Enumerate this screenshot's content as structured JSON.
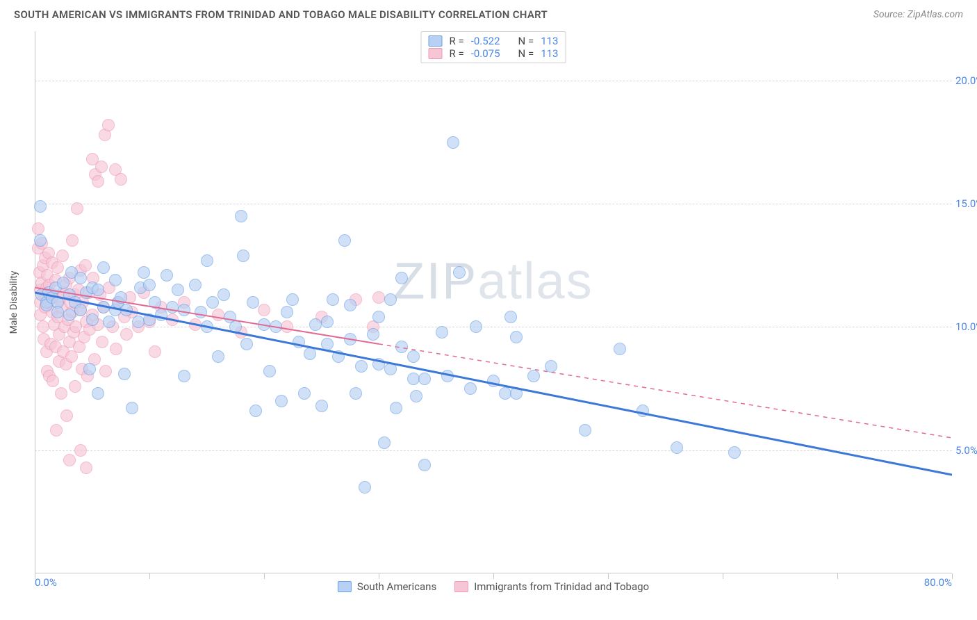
{
  "title": "SOUTH AMERICAN VS IMMIGRANTS FROM TRINIDAD AND TOBAGO MALE DISABILITY CORRELATION CHART",
  "source": "Source: ZipAtlas.com",
  "watermark_a": "ZIP",
  "watermark_b": "atlas",
  "chart": {
    "type": "scatter",
    "y_axis_title": "Male Disability",
    "xlim": [
      0,
      80
    ],
    "ylim": [
      0,
      22
    ],
    "y_ticks": [
      5,
      10,
      15,
      20
    ],
    "y_tick_labels": [
      "5.0%",
      "10.0%",
      "15.0%",
      "20.0%"
    ],
    "x_ticks": [
      0,
      10,
      20,
      30,
      40,
      50,
      60,
      70,
      80
    ],
    "x_tick_labels": {
      "0": "0.0%",
      "80": "80.0%"
    },
    "grid_color": "#d8d8d8",
    "axis_color": "#c8c8c8",
    "background_color": "#ffffff",
    "tick_label_color": "#4a86e8",
    "series": [
      {
        "name": "South Americans",
        "fill_color": "#b7d1f4",
        "stroke_color": "#6aa0e8",
        "marker_opacity": 0.65,
        "marker_radius": 9,
        "regression": {
          "x1": 0,
          "y1": 11.4,
          "x2": 80,
          "y2": 4.0,
          "solid_until_x": 80,
          "color": "#3b78d8",
          "width": 3
        },
        "R": "-0.522",
        "N": "113",
        "points": [
          [
            0.5,
            14.9
          ],
          [
            0.5,
            13.5
          ],
          [
            0.6,
            11.3
          ],
          [
            1,
            11.0
          ],
          [
            1,
            10.9
          ],
          [
            1.2,
            11.4
          ],
          [
            1.5,
            11.2
          ],
          [
            1.8,
            11.6
          ],
          [
            2,
            11.0
          ],
          [
            2,
            10.6
          ],
          [
            2.5,
            11.8
          ],
          [
            3,
            11.3
          ],
          [
            3,
            10.5
          ],
          [
            3.2,
            12.2
          ],
          [
            3.5,
            11.0
          ],
          [
            4,
            10.7
          ],
          [
            4,
            12.0
          ],
          [
            4.5,
            11.4
          ],
          [
            4.8,
            8.3
          ],
          [
            5,
            11.6
          ],
          [
            5,
            10.3
          ],
          [
            5.5,
            7.3
          ],
          [
            5.5,
            11.5
          ],
          [
            6,
            10.8
          ],
          [
            6,
            12.4
          ],
          [
            6.5,
            10.2
          ],
          [
            7,
            10.7
          ],
          [
            7,
            11.9
          ],
          [
            7.3,
            11.0
          ],
          [
            7.5,
            11.2
          ],
          [
            7.8,
            8.1
          ],
          [
            8,
            10.7
          ],
          [
            8.5,
            6.7
          ],
          [
            9,
            10.2
          ],
          [
            9.2,
            11.6
          ],
          [
            9.5,
            12.2
          ],
          [
            10,
            11.7
          ],
          [
            10,
            10.3
          ],
          [
            10.5,
            11.0
          ],
          [
            11,
            10.5
          ],
          [
            11.5,
            12.1
          ],
          [
            12,
            10.8
          ],
          [
            12.5,
            11.5
          ],
          [
            13,
            8.0
          ],
          [
            13,
            10.7
          ],
          [
            14,
            11.7
          ],
          [
            14.5,
            10.6
          ],
          [
            15,
            12.7
          ],
          [
            15,
            10.0
          ],
          [
            15.5,
            11.0
          ],
          [
            16,
            8.8
          ],
          [
            16.5,
            11.3
          ],
          [
            17,
            10.4
          ],
          [
            17.5,
            10.0
          ],
          [
            18,
            14.5
          ],
          [
            18.2,
            12.9
          ],
          [
            18.5,
            9.3
          ],
          [
            19,
            11.0
          ],
          [
            19.3,
            6.6
          ],
          [
            20,
            10.1
          ],
          [
            20.5,
            8.2
          ],
          [
            21,
            10.0
          ],
          [
            21.5,
            7.0
          ],
          [
            22,
            10.6
          ],
          [
            22.5,
            11.1
          ],
          [
            23,
            9.4
          ],
          [
            23.5,
            7.3
          ],
          [
            24,
            8.9
          ],
          [
            24.5,
            10.1
          ],
          [
            25,
            6.8
          ],
          [
            25.5,
            9.3
          ],
          [
            25.5,
            10.2
          ],
          [
            26,
            11.1
          ],
          [
            26.5,
            8.8
          ],
          [
            27,
            13.5
          ],
          [
            27.5,
            9.5
          ],
          [
            27.5,
            10.9
          ],
          [
            28,
            7.3
          ],
          [
            28.5,
            8.4
          ],
          [
            28.8,
            3.5
          ],
          [
            29.5,
            9.7
          ],
          [
            30,
            8.5
          ],
          [
            30,
            10.4
          ],
          [
            30.5,
            5.3
          ],
          [
            31,
            11.1
          ],
          [
            31,
            8.3
          ],
          [
            31.5,
            6.7
          ],
          [
            32,
            9.2
          ],
          [
            32,
            12.0
          ],
          [
            33,
            7.9
          ],
          [
            33,
            8.8
          ],
          [
            33.3,
            7.2
          ],
          [
            34,
            7.9
          ],
          [
            34,
            4.4
          ],
          [
            35.5,
            9.8
          ],
          [
            36,
            8.0
          ],
          [
            36.5,
            17.5
          ],
          [
            37,
            12.2
          ],
          [
            38,
            7.5
          ],
          [
            38.5,
            10.0
          ],
          [
            40,
            7.8
          ],
          [
            41,
            7.3
          ],
          [
            41.5,
            10.4
          ],
          [
            42,
            7.3
          ],
          [
            42,
            9.6
          ],
          [
            43.5,
            8.0
          ],
          [
            45,
            8.4
          ],
          [
            48,
            5.8
          ],
          [
            51,
            9.1
          ],
          [
            53,
            6.6
          ],
          [
            56,
            5.1
          ],
          [
            61,
            4.9
          ]
        ]
      },
      {
        "name": "Immigrants from Trinidad and Tobago",
        "fill_color": "#f6c5d6",
        "stroke_color": "#ed9ab5",
        "marker_opacity": 0.65,
        "marker_radius": 9,
        "regression": {
          "x1": 0,
          "y1": 11.6,
          "x2": 80,
          "y2": 5.5,
          "solid_until_x": 30,
          "color": "#e06a94",
          "width": 2
        },
        "R": "-0.075",
        "N": "113",
        "points": [
          [
            0.3,
            14.0
          ],
          [
            0.3,
            13.2
          ],
          [
            0.4,
            12.2
          ],
          [
            0.5,
            11.5
          ],
          [
            0.5,
            11.0
          ],
          [
            0.5,
            10.5
          ],
          [
            0.6,
            13.4
          ],
          [
            0.6,
            11.8
          ],
          [
            0.7,
            10.0
          ],
          [
            0.7,
            12.5
          ],
          [
            0.8,
            9.5
          ],
          [
            0.8,
            11.3
          ],
          [
            0.9,
            12.8
          ],
          [
            0.9,
            10.8
          ],
          [
            1.0,
            11.6
          ],
          [
            1.0,
            9.0
          ],
          [
            1.1,
            12.1
          ],
          [
            1.1,
            8.2
          ],
          [
            1.2,
            11.0
          ],
          [
            1.2,
            13.0
          ],
          [
            1.3,
            8.0
          ],
          [
            1.3,
            11.7
          ],
          [
            1.4,
            9.3
          ],
          [
            1.5,
            10.6
          ],
          [
            1.5,
            12.6
          ],
          [
            1.6,
            11.3
          ],
          [
            1.6,
            7.8
          ],
          [
            1.7,
            10.1
          ],
          [
            1.8,
            9.2
          ],
          [
            1.8,
            11.9
          ],
          [
            1.9,
            5.8
          ],
          [
            2.0,
            10.4
          ],
          [
            2.0,
            12.4
          ],
          [
            2.1,
            9.7
          ],
          [
            2.1,
            8.6
          ],
          [
            2.2,
            11.1
          ],
          [
            2.3,
            7.3
          ],
          [
            2.3,
            10.8
          ],
          [
            2.4,
            12.9
          ],
          [
            2.5,
            9.0
          ],
          [
            2.5,
            11.4
          ],
          [
            2.6,
            10.0
          ],
          [
            2.7,
            8.5
          ],
          [
            2.7,
            11.7
          ],
          [
            2.8,
            6.4
          ],
          [
            2.9,
            10.3
          ],
          [
            3.0,
            12.0
          ],
          [
            3.0,
            9.4
          ],
          [
            3.0,
            4.6
          ],
          [
            3.1,
            11.0
          ],
          [
            3.2,
            8.8
          ],
          [
            3.3,
            10.6
          ],
          [
            3.3,
            13.5
          ],
          [
            3.4,
            9.8
          ],
          [
            3.5,
            11.3
          ],
          [
            3.5,
            7.6
          ],
          [
            3.6,
            10.0
          ],
          [
            3.7,
            14.8
          ],
          [
            3.8,
            11.5
          ],
          [
            3.9,
            9.2
          ],
          [
            4.0,
            10.7
          ],
          [
            4.0,
            12.3
          ],
          [
            4.0,
            5.0
          ],
          [
            4.1,
            8.3
          ],
          [
            4.2,
            11.0
          ],
          [
            4.3,
            9.6
          ],
          [
            4.4,
            12.5
          ],
          [
            4.5,
            10.2
          ],
          [
            4.5,
            4.3
          ],
          [
            4.6,
            8.0
          ],
          [
            4.7,
            11.4
          ],
          [
            4.8,
            9.9
          ],
          [
            5.0,
            10.5
          ],
          [
            5.0,
            16.8
          ],
          [
            5.1,
            12.0
          ],
          [
            5.2,
            8.7
          ],
          [
            5.3,
            16.2
          ],
          [
            5.5,
            10.1
          ],
          [
            5.5,
            15.9
          ],
          [
            5.7,
            11.3
          ],
          [
            5.8,
            16.5
          ],
          [
            5.9,
            9.4
          ],
          [
            6.0,
            10.8
          ],
          [
            6.1,
            17.8
          ],
          [
            6.2,
            8.2
          ],
          [
            6.4,
            18.2
          ],
          [
            6.5,
            11.6
          ],
          [
            6.8,
            10.0
          ],
          [
            7.0,
            16.4
          ],
          [
            7.1,
            9.1
          ],
          [
            7.3,
            11.0
          ],
          [
            7.5,
            16.0
          ],
          [
            7.8,
            10.4
          ],
          [
            8.0,
            9.7
          ],
          [
            8.3,
            11.2
          ],
          [
            8.5,
            10.6
          ],
          [
            9.0,
            10.0
          ],
          [
            9.5,
            11.4
          ],
          [
            10.0,
            10.2
          ],
          [
            10.5,
            9.0
          ],
          [
            11.0,
            10.8
          ],
          [
            12.0,
            10.3
          ],
          [
            13.0,
            11.0
          ],
          [
            14.0,
            10.1
          ],
          [
            16.0,
            10.5
          ],
          [
            18.0,
            9.8
          ],
          [
            20.0,
            10.7
          ],
          [
            22.0,
            10.0
          ],
          [
            25.0,
            10.4
          ],
          [
            28.0,
            11.1
          ],
          [
            29.5,
            10.0
          ],
          [
            30.0,
            11.2
          ]
        ]
      }
    ]
  },
  "legend_top": {
    "r_label": "R =",
    "n_label": "N ="
  },
  "legend_bottom": [
    "South Americans",
    "Immigrants from Trinidad and Tobago"
  ]
}
